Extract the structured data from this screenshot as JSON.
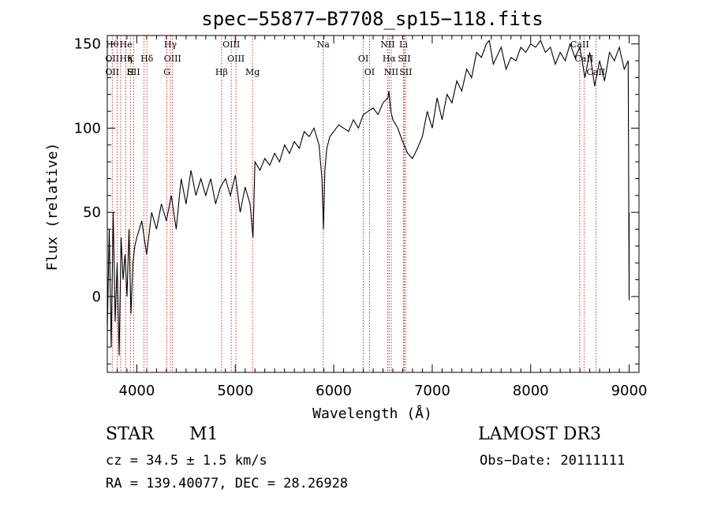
{
  "chart_data": {
    "type": "line",
    "title": "spec−55877−B7708_sp15−118.fits",
    "xlabel": "Wavelength (Å)",
    "ylabel": "Flux (relative)",
    "xlim": [
      3700,
      9100
    ],
    "ylim": [
      -45,
      155
    ],
    "xticks": [
      4000,
      5000,
      6000,
      7000,
      8000,
      9000
    ],
    "xtick_labels": [
      "4000",
      "5000",
      "6000",
      "7000",
      "8000",
      "9000"
    ],
    "yticks": [
      0,
      50,
      100,
      150
    ],
    "ytick_labels": [
      "0",
      "50",
      "100",
      "150"
    ],
    "grid": false,
    "series": [
      {
        "name": "spectrum",
        "x": [
          3700,
          3720,
          3740,
          3760,
          3780,
          3800,
          3820,
          3840,
          3860,
          3880,
          3900,
          3920,
          3940,
          3960,
          3980,
          4000,
          4050,
          4100,
          4150,
          4200,
          4250,
          4300,
          4350,
          4400,
          4450,
          4500,
          4550,
          4600,
          4650,
          4700,
          4750,
          4800,
          4850,
          4900,
          4950,
          5000,
          5050,
          5100,
          5150,
          5180,
          5200,
          5250,
          5300,
          5350,
          5400,
          5450,
          5500,
          5550,
          5600,
          5650,
          5700,
          5750,
          5800,
          5850,
          5880,
          5895,
          5910,
          5930,
          5960,
          6000,
          6050,
          6100,
          6150,
          6200,
          6250,
          6300,
          6350,
          6400,
          6450,
          6500,
          6550,
          6560,
          6580,
          6600,
          6650,
          6700,
          6750,
          6800,
          6850,
          6900,
          6950,
          7000,
          7050,
          7100,
          7150,
          7200,
          7250,
          7300,
          7350,
          7400,
          7450,
          7500,
          7550,
          7580,
          7620,
          7700,
          7750,
          7800,
          7850,
          7900,
          7950,
          8000,
          8050,
          8100,
          8150,
          8200,
          8250,
          8300,
          8350,
          8400,
          8450,
          8500,
          8550,
          8600,
          8650,
          8700,
          8750,
          8800,
          8850,
          8900,
          8950,
          8990,
          9000,
          9000
        ],
        "values": [
          -20,
          40,
          -30,
          50,
          -15,
          20,
          -35,
          35,
          10,
          25,
          0,
          40,
          -10,
          20,
          30,
          35,
          45,
          25,
          50,
          40,
          55,
          45,
          60,
          40,
          70,
          55,
          75,
          60,
          70,
          60,
          70,
          55,
          65,
          70,
          60,
          72,
          50,
          65,
          55,
          35,
          80,
          75,
          82,
          78,
          85,
          80,
          90,
          85,
          92,
          88,
          98,
          95,
          100,
          90,
          70,
          40,
          75,
          88,
          95,
          98,
          102,
          100,
          98,
          105,
          100,
          108,
          110,
          112,
          108,
          115,
          118,
          122,
          110,
          105,
          100,
          92,
          85,
          82,
          88,
          95,
          110,
          100,
          118,
          105,
          120,
          115,
          128,
          122,
          135,
          130,
          145,
          142,
          150,
          152,
          138,
          148,
          135,
          142,
          140,
          148,
          145,
          150,
          148,
          152,
          145,
          148,
          138,
          145,
          140,
          150,
          142,
          148,
          130,
          145,
          125,
          140,
          128,
          145,
          140,
          148,
          135,
          140,
          -2,
          50
        ]
      }
    ],
    "line_markers": [
      {
        "wavelength": 3750,
        "labels": [
          "Hθ",
          "OII",
          "OII"
        ]
      },
      {
        "wavelength": 3800,
        "labels": [
          ""
        ]
      },
      {
        "wavelength": 3835,
        "labels": [
          ""
        ]
      },
      {
        "wavelength": 3889,
        "labels": [
          "He",
          "Hη"
        ]
      },
      {
        "wavelength": 3934,
        "labels": [
          "K",
          "H"
        ]
      },
      {
        "wavelength": 3969,
        "labels": [
          "SII"
        ]
      },
      {
        "wavelength": 4072,
        "labels": [
          ""
        ]
      },
      {
        "wavelength": 4102,
        "labels": [
          "Hδ"
        ]
      },
      {
        "wavelength": 4305,
        "labels": [
          "G"
        ]
      },
      {
        "wavelength": 4341,
        "labels": [
          "Hγ"
        ]
      },
      {
        "wavelength": 4363,
        "labels": [
          "OIII"
        ]
      },
      {
        "wavelength": 4861,
        "labels": [
          "Hβ"
        ]
      },
      {
        "wavelength": 4959,
        "labels": [
          "OIII"
        ]
      },
      {
        "wavelength": 5007,
        "labels": [
          "OIII"
        ]
      },
      {
        "wavelength": 5175,
        "labels": [
          "Mg"
        ]
      },
      {
        "wavelength": 5893,
        "labels": [
          "Na"
        ]
      },
      {
        "wavelength": 6300,
        "labels": [
          "OI"
        ]
      },
      {
        "wavelength": 6363,
        "labels": [
          "OI"
        ]
      },
      {
        "wavelength": 6548,
        "labels": [
          "NII"
        ]
      },
      {
        "wavelength": 6563,
        "labels": [
          "Hα"
        ]
      },
      {
        "wavelength": 6584,
        "labels": [
          "NII"
        ]
      },
      {
        "wavelength": 6708,
        "labels": [
          "Li"
        ]
      },
      {
        "wavelength": 6716,
        "labels": [
          "SII"
        ]
      },
      {
        "wavelength": 6731,
        "labels": [
          "SII"
        ]
      },
      {
        "wavelength": 8498,
        "labels": [
          "CaII"
        ]
      },
      {
        "wavelength": 8542,
        "labels": [
          "CaII"
        ]
      },
      {
        "wavelength": 8662,
        "labels": [
          "CaII"
        ]
      }
    ],
    "colors": {
      "line": "#000000",
      "marker": "#cc0000",
      "axis": "#000000"
    }
  },
  "info": {
    "object_class": "STAR",
    "subclass": "M1",
    "survey": "LAMOST DR3",
    "cz": "cz = 34.5 ± 1.5 km/s",
    "obs_date": "Obs−Date: 20111111",
    "coords": "RA = 139.40077, DEC =  28.26928"
  }
}
